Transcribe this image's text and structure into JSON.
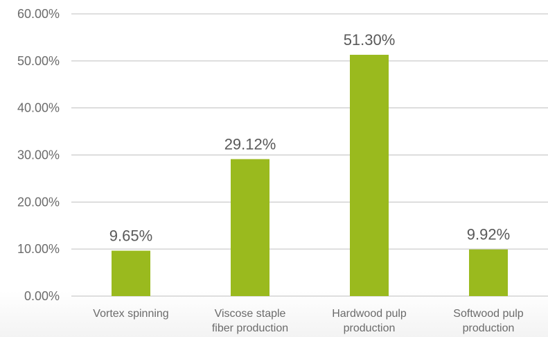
{
  "chart_data": {
    "type": "bar",
    "categories": [
      [
        "Vortex spinning"
      ],
      [
        "Viscose staple",
        "fiber production"
      ],
      [
        "Hardwood pulp",
        "production"
      ],
      [
        "Softwood pulp",
        "production"
      ]
    ],
    "values": [
      9.65,
      29.12,
      51.3,
      9.92
    ],
    "data_labels": [
      "9.65%",
      "29.12%",
      "51.30%",
      "9.92%"
    ],
    "yticks": [
      "0.00%",
      "10.00%",
      "20.00%",
      "30.00%",
      "40.00%",
      "50.00%",
      "60.00%"
    ],
    "ylim": [
      0,
      60
    ],
    "bar_color": "#9aba1e",
    "grid": true,
    "legend": "none"
  }
}
